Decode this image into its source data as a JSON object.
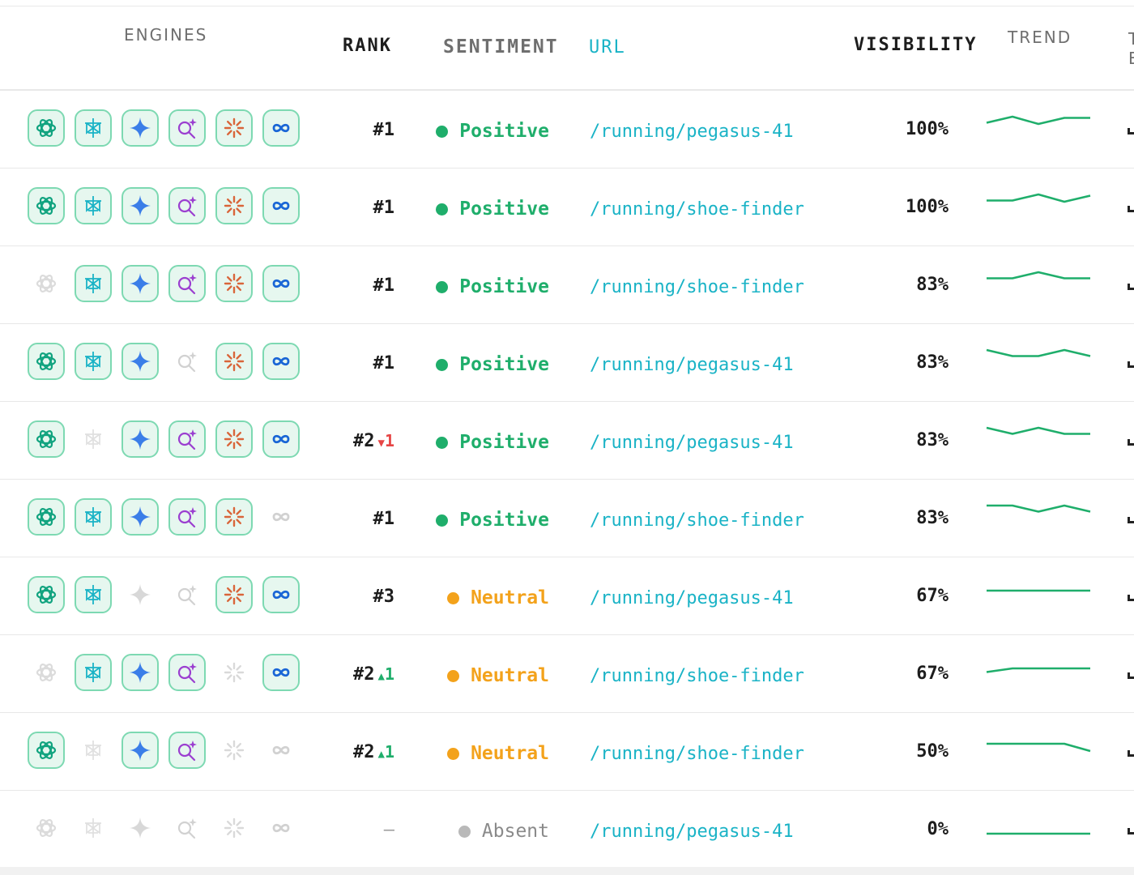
{
  "headers": {
    "engines": "ENGINES",
    "rank": "RANK",
    "sentiment": "SENTIMENT",
    "url": "URL",
    "visibility": "VISIBILITY",
    "trend": "TREND",
    "cut_label": "T\nE"
  },
  "engine_icons": [
    "chatgpt-icon",
    "perplexity-icon",
    "gemini-icon",
    "ai-search-icon",
    "claude-icon",
    "meta-ai-icon"
  ],
  "sentiment_colors": {
    "Positive": "#1fae6b",
    "Neutral": "#f3a21b",
    "Absent": "#b9b9b9"
  },
  "text_colors": {
    "Positive": "#1fae6b",
    "Neutral": "#f3a21b",
    "Absent": "#8a8a8a"
  },
  "trend_color": "#1fae6b",
  "rows": [
    {
      "engines": [
        true,
        true,
        true,
        true,
        true,
        true
      ],
      "rank": "#1",
      "delta": "",
      "delta_dir": "",
      "sentiment": "Positive",
      "url": "/running/pegasus-41",
      "visibility": "100%",
      "trend": [
        0.45,
        0.2,
        0.5,
        0.25,
        0.25
      ]
    },
    {
      "engines": [
        true,
        true,
        true,
        true,
        true,
        true
      ],
      "rank": "#1",
      "delta": "",
      "delta_dir": "",
      "sentiment": "Positive",
      "url": "/running/shoe-finder",
      "visibility": "100%",
      "trend": [
        0.45,
        0.45,
        0.2,
        0.5,
        0.25
      ]
    },
    {
      "engines": [
        false,
        true,
        true,
        true,
        true,
        true
      ],
      "rank": "#1",
      "delta": "",
      "delta_dir": "",
      "sentiment": "Positive",
      "url": "/running/shoe-finder",
      "visibility": "83%",
      "trend": [
        0.45,
        0.45,
        0.2,
        0.45,
        0.45
      ]
    },
    {
      "engines": [
        true,
        true,
        true,
        false,
        true,
        true
      ],
      "rank": "#1",
      "delta": "",
      "delta_dir": "",
      "sentiment": "Positive",
      "url": "/running/pegasus-41",
      "visibility": "83%",
      "trend": [
        0.2,
        0.45,
        0.45,
        0.2,
        0.45
      ]
    },
    {
      "engines": [
        true,
        false,
        true,
        true,
        true,
        true
      ],
      "rank": "#2",
      "delta": "1",
      "delta_dir": "down",
      "sentiment": "Positive",
      "url": "/running/pegasus-41",
      "visibility": "83%",
      "trend": [
        0.2,
        0.45,
        0.2,
        0.45,
        0.45
      ]
    },
    {
      "engines": [
        true,
        true,
        true,
        true,
        true,
        false
      ],
      "rank": "#1",
      "delta": "",
      "delta_dir": "",
      "sentiment": "Positive",
      "url": "/running/shoe-finder",
      "visibility": "83%",
      "trend": [
        0.2,
        0.2,
        0.45,
        0.2,
        0.45
      ]
    },
    {
      "engines": [
        true,
        true,
        false,
        false,
        true,
        true
      ],
      "rank": "#3",
      "delta": "",
      "delta_dir": "",
      "sentiment": "Neutral",
      "url": "/running/pegasus-41",
      "visibility": "67%",
      "trend": [
        0.5,
        0.5,
        0.5,
        0.5,
        0.5
      ]
    },
    {
      "engines": [
        false,
        true,
        true,
        true,
        false,
        true
      ],
      "rank": "#2",
      "delta": "1",
      "delta_dir": "up",
      "sentiment": "Neutral",
      "url": "/running/shoe-finder",
      "visibility": "67%",
      "trend": [
        0.65,
        0.5,
        0.5,
        0.5,
        0.5
      ]
    },
    {
      "engines": [
        true,
        false,
        true,
        true,
        false,
        false
      ],
      "rank": "#2",
      "delta": "1",
      "delta_dir": "up",
      "sentiment": "Neutral",
      "url": "/running/shoe-finder",
      "visibility": "50%",
      "trend": [
        0.4,
        0.4,
        0.4,
        0.4,
        0.7
      ]
    },
    {
      "engines": [
        false,
        false,
        false,
        false,
        false,
        false
      ],
      "rank": "–",
      "delta": "",
      "delta_dir": "",
      "sentiment": "Absent",
      "url": "/running/pegasus-41",
      "visibility": "0%",
      "trend": [
        0.9,
        0.9,
        0.9,
        0.9,
        0.9
      ]
    }
  ]
}
